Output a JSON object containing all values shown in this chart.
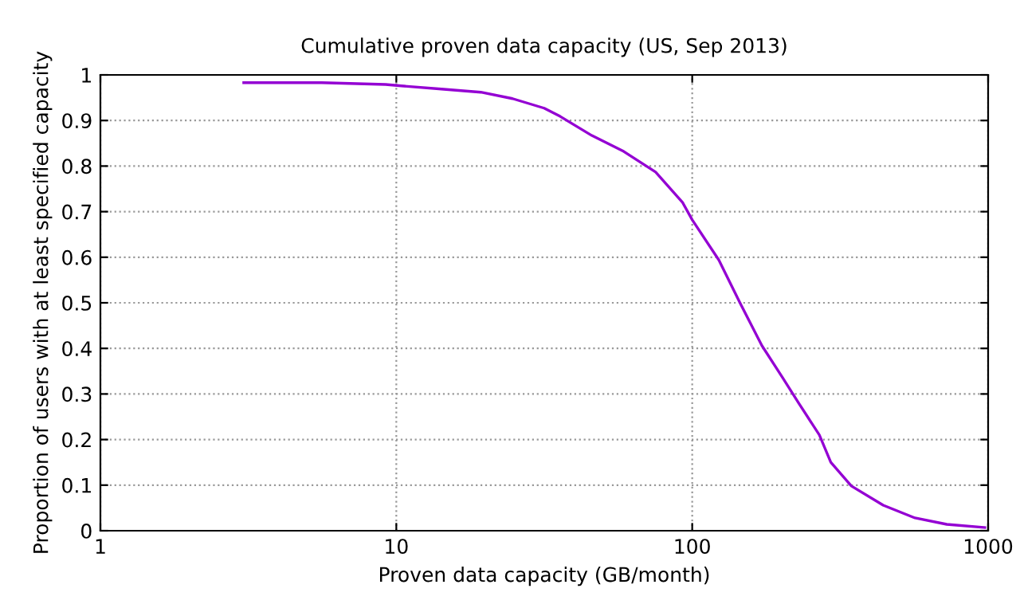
{
  "chart_data": {
    "type": "line",
    "title": "Cumulative proven data capacity (US, Sep 2013)",
    "xlabel": "Proven data capacity (GB/month)",
    "ylabel": "Proportion of users with at least specified capacity",
    "log": "x",
    "xlim": [
      1,
      1000
    ],
    "xticks": [
      1,
      10,
      100,
      1000
    ],
    "ylim": [
      0,
      1
    ],
    "yticks": [
      0,
      0.1,
      0.2,
      0.3,
      0.4,
      0.5,
      0.6,
      0.7,
      0.8,
      0.9,
      1
    ],
    "grid": true,
    "line_style": "solid",
    "marker": "none",
    "series": [
      {
        "color": "#9400d3",
        "x": [
          3.05,
          5.6,
          9.2,
          10.4,
          14.2,
          19.3,
          24.7,
          31.6,
          35.8,
          45.8,
          58.7,
          75.2,
          92.8,
          100,
          123,
          145,
          172,
          202,
          229,
          269,
          294,
          345,
          442,
          566,
          725,
          975
        ],
        "values": [
          0.983,
          0.983,
          0.979,
          0.976,
          0.969,
          0.962,
          0.948,
          0.927,
          0.909,
          0.867,
          0.832,
          0.787,
          0.72,
          0.682,
          0.594,
          0.5,
          0.406,
          0.336,
          0.28,
          0.21,
          0.15,
          0.098,
          0.056,
          0.028,
          0.014,
          0.007
        ]
      }
    ]
  }
}
